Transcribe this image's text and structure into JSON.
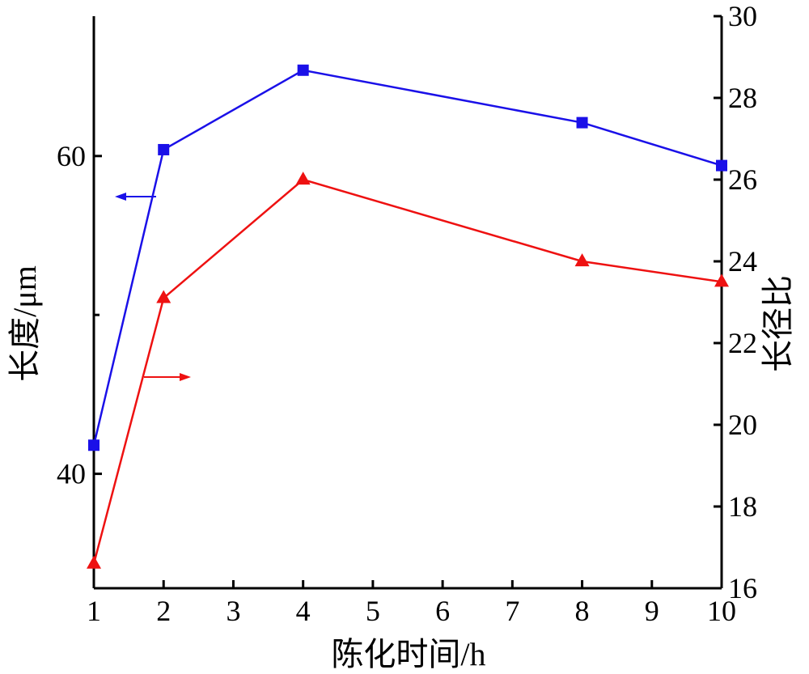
{
  "chart_data": {
    "type": "line",
    "xlabel": "陈化时间/h",
    "ylabel_left": "长度/μm",
    "ylabel_right": "长径比",
    "x_ticks": [
      1,
      2,
      3,
      4,
      5,
      6,
      7,
      8,
      9,
      10
    ],
    "xlim": [
      1,
      10
    ],
    "ylim_left": [
      32.8,
      68.8
    ],
    "ylim_right": [
      16,
      30
    ],
    "y_ticks_left_labeled": [
      40,
      60
    ],
    "y_ticks_left_minor": [
      50
    ],
    "y_ticks_right": [
      16,
      18,
      20,
      22,
      24,
      26,
      28,
      30
    ],
    "grid": false,
    "series": [
      {
        "axis": "left",
        "marker": "square",
        "color": "#1a10e8",
        "x": [
          1,
          2,
          4,
          8,
          10
        ],
        "values": [
          41.8,
          60.4,
          65.4,
          62.1,
          59.4
        ]
      },
      {
        "axis": "right",
        "marker": "triangle",
        "color": "#ee1111",
        "x": [
          1,
          2,
          4,
          8,
          10
        ],
        "values": [
          16.6,
          23.1,
          26.0,
          24.0,
          23.5
        ]
      }
    ],
    "annotations": [
      {
        "type": "arrow",
        "direction": "left",
        "color": "#1a10e8",
        "points_to": "left-axis"
      },
      {
        "type": "arrow",
        "direction": "right",
        "color": "#ee1111",
        "points_to": "right-axis"
      }
    ]
  }
}
